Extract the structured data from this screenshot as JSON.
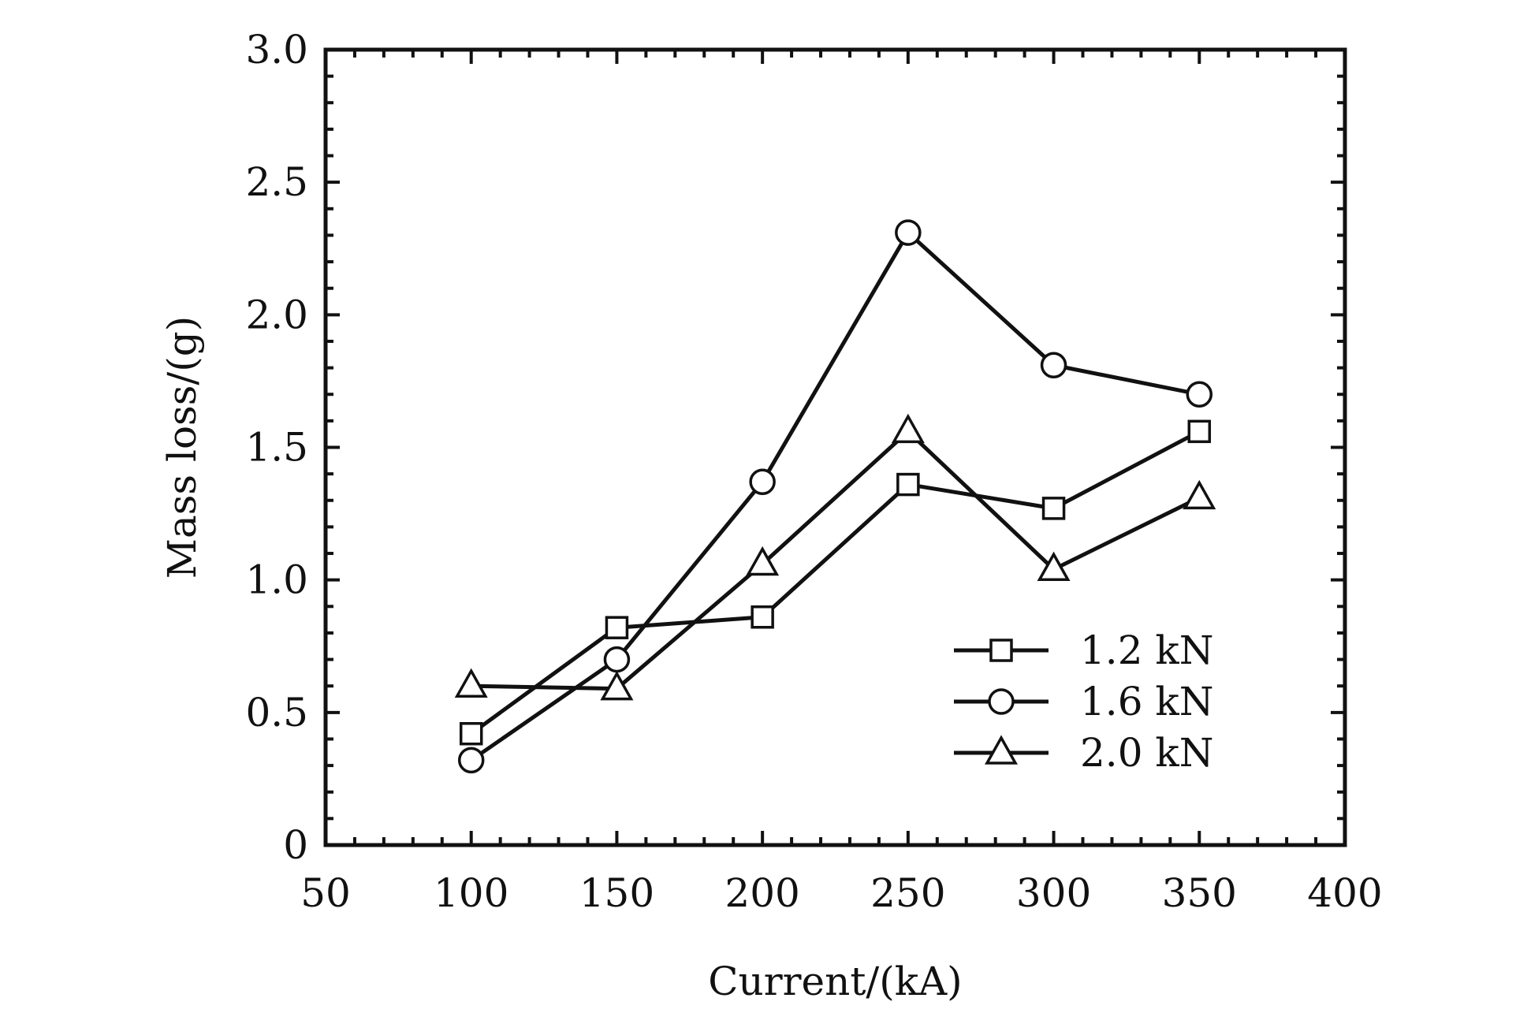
{
  "chart_data": {
    "type": "line",
    "title": "",
    "xlabel": "Current/(kA)",
    "ylabel": "Mass loss/(g)",
    "x": [
      100,
      150,
      200,
      250,
      300,
      350
    ],
    "xlim": [
      50,
      400
    ],
    "ylim": [
      0,
      3.0
    ],
    "xticks": [
      50,
      100,
      150,
      200,
      250,
      300,
      350,
      400
    ],
    "xtick_labels": [
      "50",
      "100",
      "150",
      "200",
      "250",
      "300",
      "350",
      "400"
    ],
    "yticks": [
      0,
      0.5,
      1.0,
      1.5,
      2.0,
      2.5,
      3.0
    ],
    "ytick_labels": [
      "0",
      "0.5",
      "1.0",
      "1.5",
      "2.0",
      "2.5",
      "3.0"
    ],
    "grid": false,
    "legend_position": "bottom-right",
    "series": [
      {
        "name": "1.2 kN",
        "marker": "square",
        "values": [
          0.42,
          0.82,
          0.86,
          1.36,
          1.27,
          1.56
        ]
      },
      {
        "name": "1.6 kN",
        "marker": "circle",
        "values": [
          0.32,
          0.7,
          1.37,
          2.31,
          1.81,
          1.7
        ]
      },
      {
        "name": "2.0 kN",
        "marker": "triangle",
        "values": [
          0.6,
          0.59,
          1.06,
          1.56,
          1.04,
          1.31
        ]
      }
    ],
    "colors": {
      "line": "#111111",
      "marker_fill": "#ffffff"
    }
  }
}
